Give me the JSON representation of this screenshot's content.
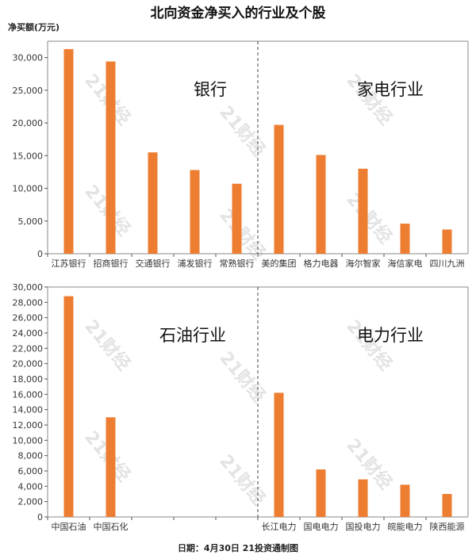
{
  "header": {
    "title": "北向资金净买入的行业及个股",
    "unit_label": "净买额(万元)"
  },
  "footer": {
    "text": "日期：4月30日 21投资通制图"
  },
  "watermark": "21财经",
  "colors": {
    "bar": "#ED7D31",
    "axis": "#888888",
    "grid_tick": "#555555"
  },
  "chart_data": [
    {
      "type": "bar",
      "groups": [
        {
          "label": "银行",
          "categories": [
            "江苏银行",
            "招商银行",
            "交通银行",
            "浦发银行",
            "常熟银行"
          ],
          "values": [
            31300,
            29400,
            15500,
            12800,
            10700
          ]
        },
        {
          "label": "家电行业",
          "categories": [
            "美的集团",
            "格力电器",
            "海尔智家",
            "海信家电",
            "四川九洲"
          ],
          "values": [
            19700,
            15100,
            13000,
            4600,
            3700
          ]
        }
      ],
      "ylim": [
        0,
        32500
      ],
      "yticks": [
        0,
        5000,
        10000,
        15000,
        20000,
        25000,
        30000
      ],
      "ytick_labels": [
        "0",
        "5,000",
        "10,000",
        "15,000",
        "20,000",
        "25,000",
        "30,000"
      ]
    },
    {
      "type": "bar",
      "groups": [
        {
          "label": "石油行业",
          "categories": [
            "中国石油",
            "中国石化",
            "",
            "",
            ""
          ],
          "values": [
            28800,
            13000,
            null,
            null,
            null
          ]
        },
        {
          "label": "电力行业",
          "categories": [
            "长江电力",
            "国电电力",
            "国投电力",
            "皖能电力",
            "陕西能源"
          ],
          "values": [
            16200,
            6200,
            4900,
            4200,
            3000
          ]
        }
      ],
      "ylim": [
        0,
        30000
      ],
      "yticks": [
        0,
        2000,
        4000,
        6000,
        8000,
        10000,
        12000,
        14000,
        16000,
        18000,
        20000,
        22000,
        24000,
        26000,
        28000,
        30000
      ],
      "ytick_labels": [
        "0",
        "2,000",
        "4,000",
        "6,000",
        "8,000",
        "10,000",
        "12,000",
        "14,000",
        "16,000",
        "18,000",
        "20,000",
        "22,000",
        "24,000",
        "26,000",
        "28,000",
        "30,000"
      ]
    }
  ]
}
